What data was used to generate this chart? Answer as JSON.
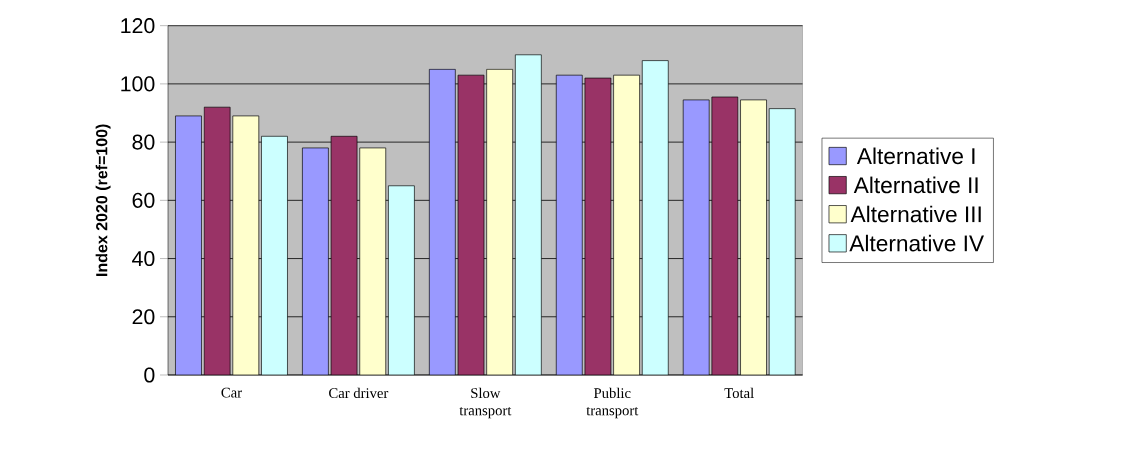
{
  "chart_data": {
    "type": "bar",
    "ylabel": "Index 2020 (ref=100)",
    "categories": [
      "Car",
      "Car driver",
      "Slow transport",
      "Public transport",
      "Total"
    ],
    "series": [
      {
        "name": "Alternative I",
        "color": "#9999ff",
        "values": [
          89,
          78,
          105,
          103,
          94.5
        ]
      },
      {
        "name": "Alternative II",
        "color": "#993366",
        "values": [
          92,
          82,
          103,
          102,
          95.5
        ]
      },
      {
        "name": "Alternative III",
        "color": "#ffffcc",
        "values": [
          89,
          78,
          105,
          103,
          94.5
        ]
      },
      {
        "name": "Alternative IV",
        "color": "#ccffff",
        "values": [
          82,
          65,
          110,
          108,
          91.5
        ]
      }
    ],
    "ylim": [
      0,
      120
    ],
    "yticks": [
      0,
      20,
      40,
      60,
      80,
      100,
      120
    ],
    "grid": "y",
    "legend": "right"
  }
}
